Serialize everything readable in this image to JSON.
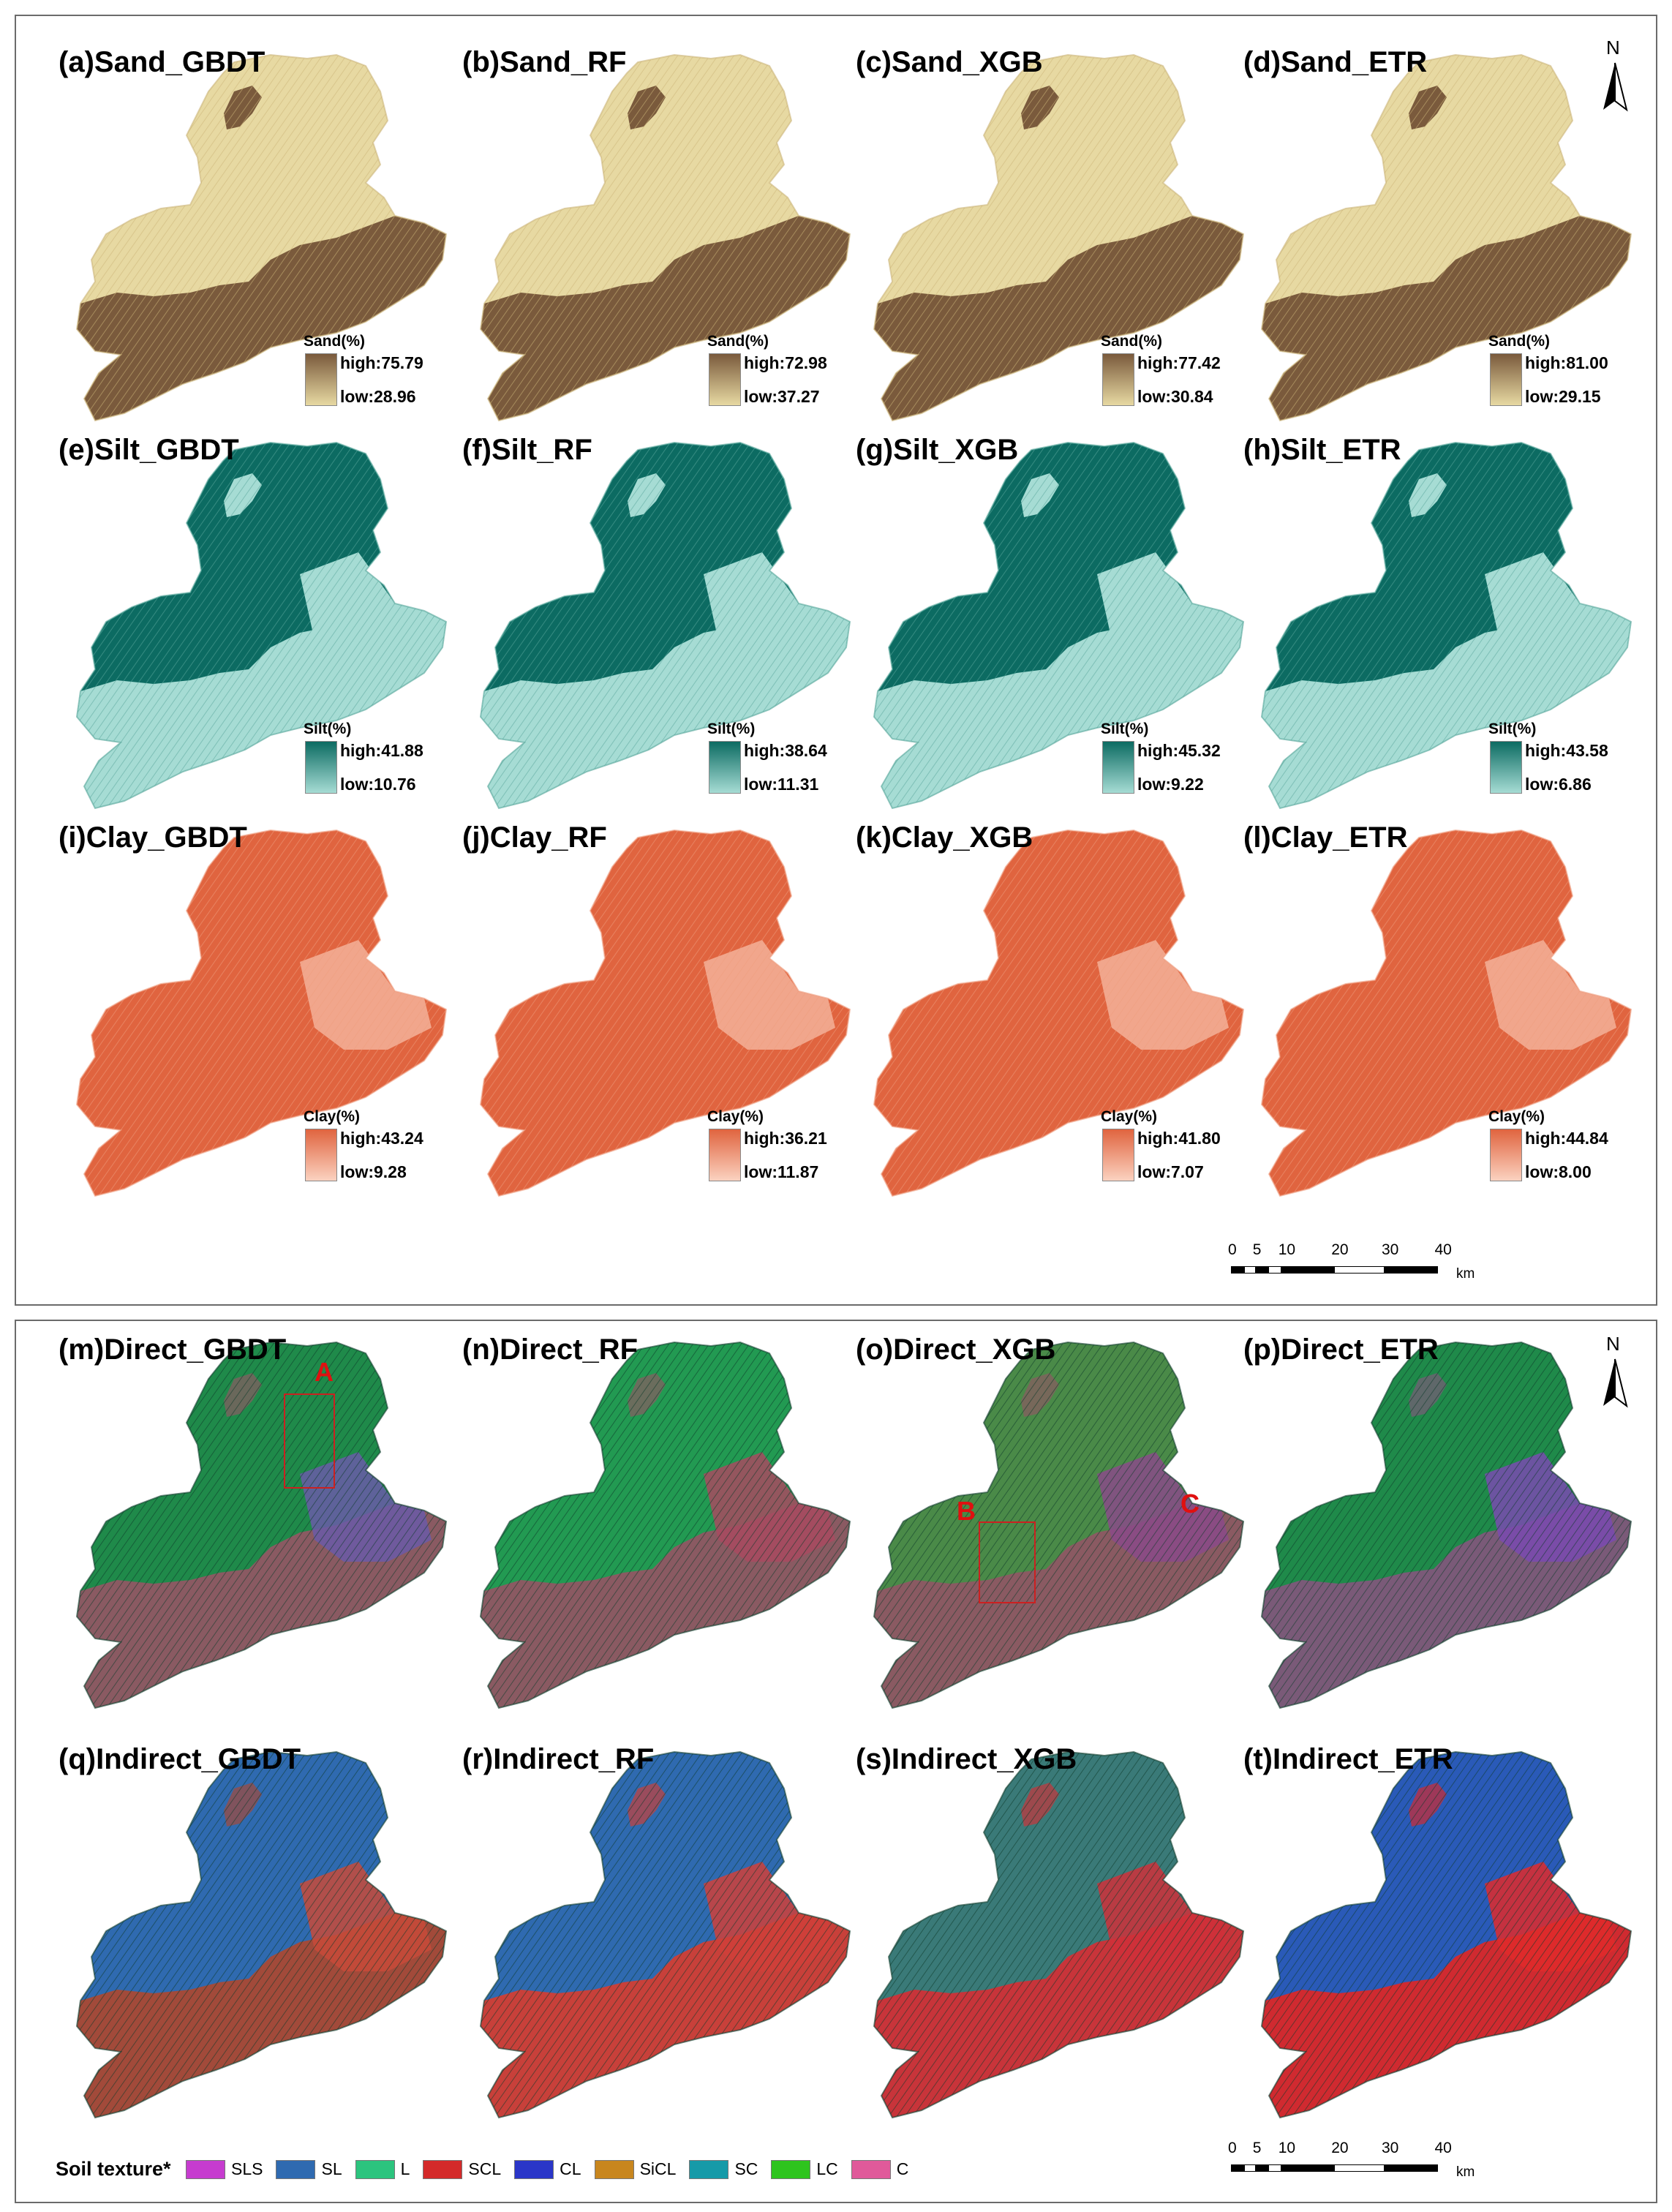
{
  "colors": {
    "sand": {
      "high": "#7a5a3c",
      "low": "#e7d9a2",
      "pattern": "#cbb478"
    },
    "silt": {
      "high": "#0c6b62",
      "low": "#a6dcd4",
      "pattern": "#5aa89c"
    },
    "clay": {
      "high": "#e0643f",
      "low": "#fbd2c0",
      "pattern": "#ee9c7e"
    },
    "markers": "#e01010"
  },
  "continuous_panels": [
    {
      "title": "(a)Sand_GBDT",
      "var": "sand",
      "legend_title": "Sand(%)",
      "high": "high:75.79",
      "low": "low:28.96"
    },
    {
      "title": "(b)Sand_RF",
      "var": "sand",
      "legend_title": "Sand(%)",
      "high": "high:72.98",
      "low": "low:37.27"
    },
    {
      "title": "(c)Sand_XGB",
      "var": "sand",
      "legend_title": "Sand(%)",
      "high": "high:77.42",
      "low": "low:30.84"
    },
    {
      "title": "(d)Sand_ETR",
      "var": "sand",
      "legend_title": "Sand(%)",
      "high": "high:81.00",
      "low": "low:29.15"
    },
    {
      "title": "(e)Silt_GBDT",
      "var": "silt",
      "legend_title": "Silt(%)",
      "high": "high:41.88",
      "low": "low:10.76"
    },
    {
      "title": "(f)Silt_RF",
      "var": "silt",
      "legend_title": "Silt(%)",
      "high": "high:38.64",
      "low": "low:11.31"
    },
    {
      "title": "(g)Silt_XGB",
      "var": "silt",
      "legend_title": "Silt(%)",
      "high": "high:45.32",
      "low": "low:9.22"
    },
    {
      "title": "(h)Silt_ETR",
      "var": "silt",
      "legend_title": "Silt(%)",
      "high": "high:43.58",
      "low": "low:6.86"
    },
    {
      "title": "(i)Clay_GBDT",
      "var": "clay",
      "legend_title": "Clay(%)",
      "high": "high:43.24",
      "low": "low:9.28"
    },
    {
      "title": "(j)Clay_RF",
      "var": "clay",
      "legend_title": "Clay(%)",
      "high": "high:36.21",
      "low": "low:11.87"
    },
    {
      "title": "(k)Clay_XGB",
      "var": "clay",
      "legend_title": "Clay(%)",
      "high": "high:41.80",
      "low": "low:7.07"
    },
    {
      "title": "(l)Clay_ETR",
      "var": "clay",
      "legend_title": "Clay(%)",
      "high": "high:44.84",
      "low": "low:8.00"
    }
  ],
  "texture_panels": [
    {
      "title": "(m)Direct_GBDT",
      "base": "#8a5a62",
      "north": "#1f8a4a",
      "accent": "#6a5aa8"
    },
    {
      "title": "(n)Direct_RF",
      "base": "#8a5a62",
      "north": "#229a52",
      "accent": "#a84a60"
    },
    {
      "title": "(o)Direct_XGB",
      "base": "#8a5a62",
      "north": "#4a8a48",
      "accent": "#8a4a8a"
    },
    {
      "title": "(p)Direct_ETR",
      "base": "#7a5a78",
      "north": "#1f8a4a",
      "accent": "#7a4ab0"
    },
    {
      "title": "(q)Indirect_GBDT",
      "base": "#a24a3a",
      "north": "#2f6ab0",
      "accent": "#c84a3a"
    },
    {
      "title": "(r)Indirect_RF",
      "base": "#c8403a",
      "north": "#2f6ab0",
      "accent": "#d0403a"
    },
    {
      "title": "(s)Indirect_XGB",
      "base": "#c8343a",
      "north": "#3a7a78",
      "accent": "#d0303a"
    },
    {
      "title": "(t)Indirect_ETR",
      "base": "#d02a30",
      "north": "#2a5ab8",
      "accent": "#e02a2a"
    }
  ],
  "north_arrow": {
    "label": "N"
  },
  "scalebar": {
    "ticks": [
      "0",
      "5",
      "10",
      "20",
      "30",
      "40"
    ],
    "unit": "km"
  },
  "markers": [
    {
      "label": "A"
    },
    {
      "label": "B"
    },
    {
      "label": "C"
    }
  ],
  "texture_legend": {
    "title": "Soil texture*",
    "items": [
      {
        "label": "SLS",
        "color": "#c63ccf"
      },
      {
        "label": "SL",
        "color": "#2f6ab0"
      },
      {
        "label": "L",
        "color": "#2cc47e"
      },
      {
        "label": "SCL",
        "color": "#d42a2a"
      },
      {
        "label": "CL",
        "color": "#2a36c8"
      },
      {
        "label": "SiCL",
        "color": "#c8861e"
      },
      {
        "label": "SC",
        "color": "#169aa8"
      },
      {
        "label": "LC",
        "color": "#2ec41e"
      },
      {
        "label": "C",
        "color": "#e05a9a"
      }
    ]
  }
}
